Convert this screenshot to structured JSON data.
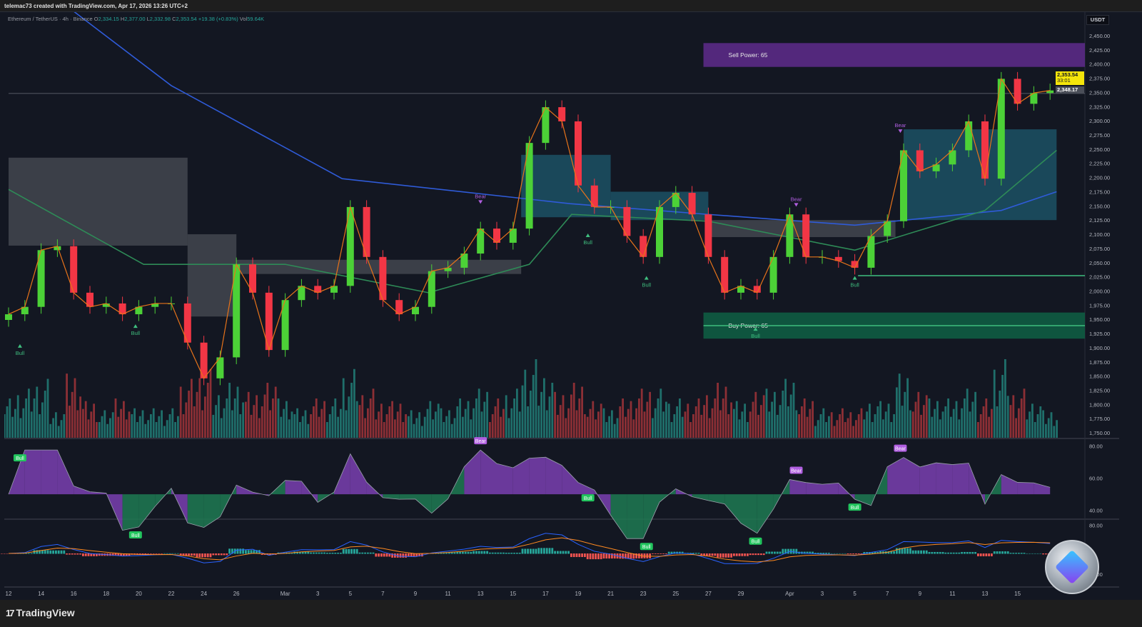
{
  "header": {
    "credit": "telemac73 created with TradingView.com, Apr 17, 2026 13:26 UTC+2"
  },
  "legend": {
    "symbol": "Ethereum / TetherUS · 4h · Binance",
    "o_label": "O",
    "o": "2,334.15",
    "h_label": "H",
    "h": "2,377.00",
    "l_label": "L",
    "l": "2,332.98",
    "c_label": "C",
    "c": "2,353.54",
    "change": "+19.38 (+0.83%)",
    "vol_label": "Vol",
    "vol": "59.64K"
  },
  "price_axis": {
    "currency": "USDT",
    "last_price": "2,353.54",
    "countdown": "33:01",
    "mark_price": "2,348.17"
  },
  "footer": {
    "brand": "TradingView",
    "logo": "17"
  },
  "colors": {
    "up": "#4cd137",
    "down": "#f23645",
    "ma_slow": "#2f5bd8",
    "ma_fast": "#2e8b57",
    "sell_zone": "#5b2a86",
    "buy_zone": "#0f5c43",
    "bg": "#131722",
    "vol_up": "#1f6f6b",
    "vol_down": "#8c2f35"
  },
  "chart_data": [
    {
      "type": "candlestick",
      "interval": "4h (shown as daily approximation)",
      "ylim": [
        1740,
        2460
      ],
      "yticks": [
        "2,450.00",
        "2,425.00",
        "2,400.00",
        "2,375.00",
        "2,350.00",
        "2,325.00",
        "2,300.00",
        "2,275.00",
        "2,250.00",
        "2,225.00",
        "2,200.00",
        "2,175.00",
        "2,150.00",
        "2,125.00",
        "2,100.00",
        "2,075.00",
        "2,050.00",
        "2,025.00",
        "2,000.00",
        "1,975.00",
        "1,950.00",
        "1,925.00",
        "1,900.00",
        "1,875.00",
        "1,850.00",
        "1,825.00",
        "1,800.00",
        "1,775.00",
        "1,750.00"
      ],
      "ytick_values": [
        2450,
        2425,
        2400,
        2375,
        2350,
        2325,
        2300,
        2275,
        2250,
        2225,
        2200,
        2175,
        2150,
        2125,
        2100,
        2075,
        2050,
        2025,
        2000,
        1975,
        1950,
        1925,
        1900,
        1875,
        1850,
        1825,
        1800,
        1775,
        1750
      ],
      "xticks": [
        {
          "label": "12",
          "day": 0
        },
        {
          "label": "14",
          "day": 2
        },
        {
          "label": "16",
          "day": 4
        },
        {
          "label": "18",
          "day": 6
        },
        {
          "label": "20",
          "day": 8
        },
        {
          "label": "22",
          "day": 10
        },
        {
          "label": "24",
          "day": 12
        },
        {
          "label": "26",
          "day": 14
        },
        {
          "label": "Mar",
          "day": 17
        },
        {
          "label": "3",
          "day": 19
        },
        {
          "label": "5",
          "day": 21
        },
        {
          "label": "7",
          "day": 23
        },
        {
          "label": "9",
          "day": 25
        },
        {
          "label": "11",
          "day": 27
        },
        {
          "label": "13",
          "day": 29
        },
        {
          "label": "15",
          "day": 31
        },
        {
          "label": "17",
          "day": 33
        },
        {
          "label": "19",
          "day": 35
        },
        {
          "label": "21",
          "day": 37
        },
        {
          "label": "23",
          "day": 39
        },
        {
          "label": "25",
          "day": 41
        },
        {
          "label": "27",
          "day": 43
        },
        {
          "label": "29",
          "day": 45
        },
        {
          "label": "Apr",
          "day": 48
        },
        {
          "label": "3",
          "day": 50
        },
        {
          "label": "5",
          "day": 52
        },
        {
          "label": "7",
          "day": 54
        },
        {
          "label": "9",
          "day": 56
        },
        {
          "label": "11",
          "day": 58
        },
        {
          "label": "13",
          "day": 60
        },
        {
          "label": "15",
          "day": 62
        }
      ],
      "start_date": "Feb 12",
      "close": [
        1959,
        1972,
        2072,
        2079,
        1997,
        1972,
        1978,
        1959,
        1972,
        1978,
        1978,
        1909,
        1846,
        1883,
        2047,
        1997,
        1896,
        1984,
        2009,
        1997,
        2009,
        2148,
        2060,
        1984,
        1959,
        1972,
        2035,
        2041,
        2066,
        2110,
        2085,
        2110,
        2261,
        2324,
        2299,
        2186,
        2148,
        2148,
        2097,
        2060,
        2148,
        2173,
        2135,
        2060,
        1997,
        2009,
        1997,
        2060,
        2135,
        2060,
        2060,
        2053,
        2041,
        2097,
        2123,
        2248,
        2211,
        2223,
        2248,
        2299,
        2198,
        2374,
        2330,
        2349,
        2353.54
      ],
      "volume_relative": [
        0.4,
        0.5,
        0.6,
        0.3,
        0.7,
        0.4,
        0.3,
        0.4,
        0.3,
        0.3,
        0.3,
        0.6,
        0.7,
        0.5,
        0.6,
        0.5,
        0.6,
        0.4,
        0.3,
        0.4,
        0.4,
        0.7,
        0.5,
        0.4,
        0.4,
        0.3,
        0.4,
        0.3,
        0.4,
        0.5,
        0.4,
        0.5,
        0.8,
        0.7,
        0.5,
        0.6,
        0.4,
        0.3,
        0.4,
        0.5,
        0.5,
        0.4,
        0.4,
        0.5,
        0.6,
        0.4,
        0.5,
        0.5,
        0.6,
        0.4,
        0.3,
        0.3,
        0.3,
        0.4,
        0.4,
        0.7,
        0.5,
        0.4,
        0.4,
        0.5,
        0.4,
        0.8,
        0.5,
        0.4,
        0.3
      ],
      "ma_slow": [
        [
          4,
          2493
        ],
        [
          10,
          2362
        ],
        [
          20.5,
          2198
        ],
        [
          34.5,
          2154
        ],
        [
          43,
          2135
        ],
        [
          52,
          2116
        ],
        [
          61,
          2142
        ],
        [
          64.4,
          2175
        ]
      ],
      "ma_fast": [
        [
          0,
          2179
        ],
        [
          8.3,
          2047
        ],
        [
          17,
          2047
        ],
        [
          25.8,
          1997
        ],
        [
          32,
          2047
        ],
        [
          34.6,
          2135
        ],
        [
          43,
          2123
        ],
        [
          52,
          2072
        ],
        [
          60,
          2142
        ],
        [
          64.4,
          2248
        ]
      ],
      "bands": [
        {
          "from": 0,
          "to": 11,
          "low": 2080,
          "high": 2235,
          "color": "#4a4d55"
        },
        {
          "from": 11,
          "to": 14,
          "low": 1955,
          "high": 2100,
          "color": "#4a4d55"
        },
        {
          "from": 14,
          "to": 31.5,
          "low": 2030,
          "high": 2055,
          "color": "#4a4d55"
        },
        {
          "from": 31.5,
          "to": 37,
          "low": 2130,
          "high": 2240,
          "color": "#1e5a6e"
        },
        {
          "from": 37,
          "to": 43,
          "low": 2125,
          "high": 2175,
          "color": "#1e5a6e"
        },
        {
          "from": 43,
          "to": 54.5,
          "low": 2095,
          "high": 2125,
          "color": "#4a4d55"
        },
        {
          "from": 55,
          "to": 64.4,
          "low": 2125,
          "high": 2285,
          "color": "#1e5a6e"
        }
      ],
      "zones": [
        {
          "label": "Sell Power: 65",
          "low": 2395,
          "high": 2437,
          "from": 42.7,
          "color": "#5b2a86"
        },
        {
          "label": "Buy Power: 65",
          "low": 1916,
          "high": 1962,
          "from": 42.7,
          "color": "#0f5c43"
        }
      ],
      "levels": [
        {
          "price": 1939,
          "from": 42.7,
          "color": "#3fbf7f"
        },
        {
          "price": 2027,
          "from": 52.2,
          "color": "#3fbf7f"
        },
        {
          "price": 2348.17,
          "from": 0,
          "color": "#6b6f7a"
        }
      ],
      "signals": [
        {
          "type": "Bull",
          "day": 0.7,
          "price": 1900
        },
        {
          "type": "Bull",
          "day": 7.8,
          "price": 1935
        },
        {
          "type": "Bull",
          "day": 35.6,
          "price": 2095
        },
        {
          "type": "Bull",
          "day": 39.2,
          "price": 2020
        },
        {
          "type": "Bull",
          "day": 45.9,
          "price": 1930
        },
        {
          "type": "Bull",
          "day": 52,
          "price": 2020
        },
        {
          "type": "Bear",
          "day": 29,
          "price": 2160
        },
        {
          "type": "Bear",
          "day": 48.4,
          "price": 2155
        },
        {
          "type": "Bear",
          "day": 54.8,
          "price": 2285
        }
      ]
    },
    {
      "type": "area",
      "name_visible": false,
      "yticks": [
        "80.00",
        "60.00",
        "40.00"
      ],
      "ytick_values": [
        80,
        60,
        40
      ],
      "ylim": [
        35,
        82
      ],
      "signals": [
        {
          "type": "Bull",
          "day": 0.7
        },
        {
          "type": "Bull",
          "day": 7.8
        },
        {
          "type": "Bear",
          "day": 29
        },
        {
          "type": "Bull",
          "day": 35.6
        },
        {
          "type": "Bull",
          "day": 39.2
        },
        {
          "type": "Bear",
          "day": 48.4
        },
        {
          "type": "Bull",
          "day": 45.9
        },
        {
          "type": "Bull",
          "day": 52
        },
        {
          "type": "Bear",
          "day": 54.8
        }
      ]
    },
    {
      "type": "histogram+lines",
      "yticks": [
        "80.00",
        "40.00"
      ],
      "ytick_values": [
        80,
        40
      ]
    }
  ]
}
